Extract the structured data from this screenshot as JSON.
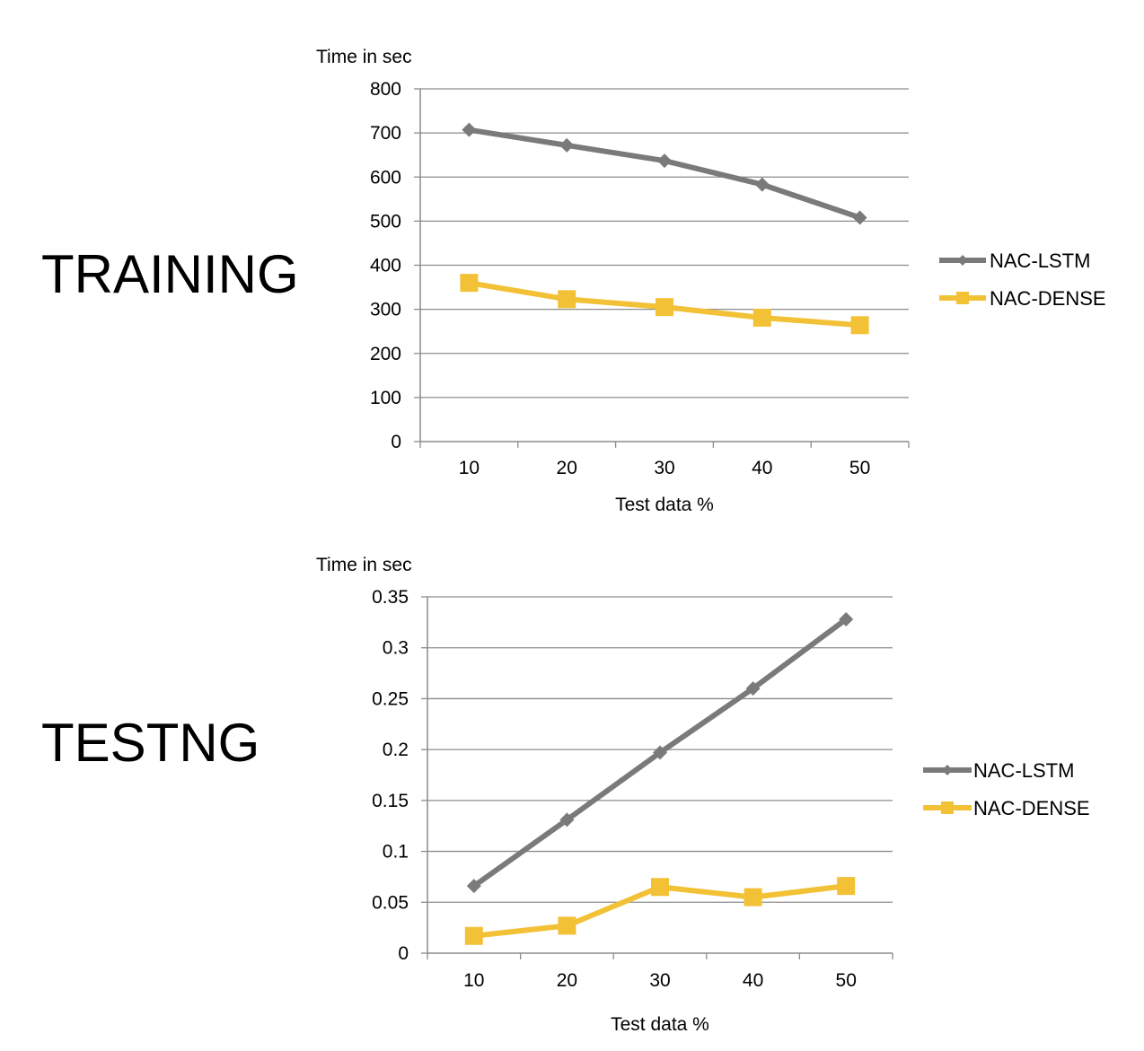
{
  "colors": {
    "axis": "#8c8c8c",
    "grid": "#8c8c8c",
    "lstm": "#7a7a7a",
    "dense": "#f2c136",
    "text": "#000000"
  },
  "chart_data": [
    {
      "type": "line",
      "section_label": "TRAINING",
      "title": "",
      "ylabel": "Time in sec",
      "xlabel": "Test data %",
      "categories": [
        "10",
        "20",
        "30",
        "40",
        "50"
      ],
      "ylim": [
        0,
        800
      ],
      "yticks": [
        "0",
        "100",
        "200",
        "300",
        "400",
        "500",
        "600",
        "700",
        "800"
      ],
      "grid": true,
      "legend_position": "right",
      "series": [
        {
          "name": "NAC-LSTM",
          "marker": "diamond",
          "color_key": "lstm",
          "values": [
            707,
            672,
            637,
            583,
            508
          ]
        },
        {
          "name": "NAC-DENSE",
          "marker": "square",
          "color_key": "dense",
          "values": [
            360,
            323,
            305,
            281,
            264
          ]
        }
      ]
    },
    {
      "type": "line",
      "section_label": "TESTNG",
      "title": "",
      "ylabel": "Time in sec",
      "xlabel": "Test data %",
      "categories": [
        "10",
        "20",
        "30",
        "40",
        "50"
      ],
      "ylim": [
        0,
        0.35
      ],
      "yticks": [
        "0",
        "0.05",
        "0.1",
        "0.15",
        "0.2",
        "0.25",
        "0.3",
        "0.35"
      ],
      "grid": true,
      "legend_position": "right",
      "series": [
        {
          "name": "NAC-LSTM",
          "marker": "diamond",
          "color_key": "lstm",
          "values": [
            0.066,
            0.131,
            0.197,
            0.26,
            0.328
          ]
        },
        {
          "name": "NAC-DENSE",
          "marker": "square",
          "color_key": "dense",
          "values": [
            0.017,
            0.027,
            0.065,
            0.055,
            0.066
          ]
        }
      ]
    }
  ]
}
